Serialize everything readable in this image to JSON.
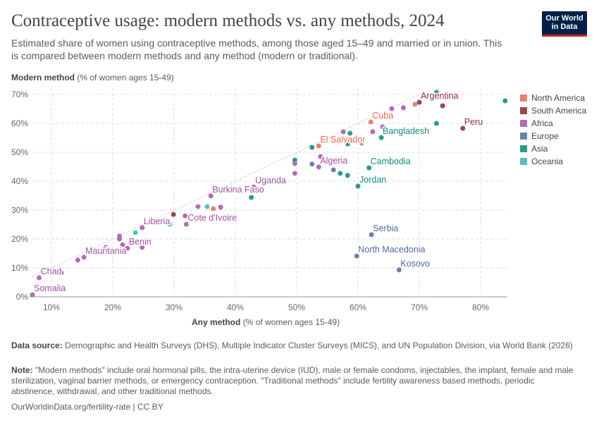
{
  "title": "Contraceptive usage: modern methods vs. any methods, 2024",
  "subtitle": "Estimated share of women using contraceptive methods, among those aged 15–49 and married or in union. This is compared between modern methods and any method (modern or traditional).",
  "logo": {
    "line1": "Our World",
    "line2": "in Data"
  },
  "footer": {
    "source_label": "Data source:",
    "source": "Demographic and Health Surveys (DHS), Multiple Indicator Cluster Surveys (MICS), and UN Population Division, via World Bank (2026)",
    "note_label": "Note:",
    "note": "\"Modern methods\" include oral hormonal pills, the intra-uterine device (IUD), male or female condoms, injectables, the implant, female and male sterilization, vaginal barrier methods, or emergency contraception. \"Traditional methods\" include fertility awareness based methods, periodic abstinence, withdrawal, and other traditional methods.",
    "url": "OurWorldinData.org/fertility-rate | CC BY"
  },
  "chart_data": {
    "type": "scatter",
    "title": "Contraceptive usage: modern methods vs. any methods, 2024",
    "xlabel_bold": "Any method",
    "xlabel_rest": "(% of women ages 15-49)",
    "ylabel_bold": "Modern method",
    "ylabel_rest": "(% of women ages 15-49)",
    "xlim": [
      7,
      84
    ],
    "ylim": [
      0,
      72
    ],
    "xticks": [
      10,
      20,
      30,
      40,
      50,
      60,
      70,
      80
    ],
    "yticks": [
      0,
      10,
      20,
      30,
      40,
      50,
      60,
      70
    ],
    "tick_suffix": "%",
    "grid": true,
    "reference_line": "y = x",
    "legend_position": "right",
    "colors": {
      "North America": "#e4826c",
      "South America": "#9a4552",
      "Africa": "#b06eb4",
      "Europe": "#6d80ad",
      "Asia": "#2a9a8c",
      "Oceania": "#5bbcc8"
    },
    "label_colors": {
      "North America": "#e0674f",
      "South America": "#8a2e3c",
      "Africa": "#a050a8",
      "Europe": "#4f68a0",
      "Asia": "#138a7c",
      "Oceania": "#3aa8b6"
    },
    "legend": [
      "North America",
      "South America",
      "Africa",
      "Europe",
      "Asia",
      "Oceania"
    ],
    "points": [
      {
        "x": 70.0,
        "y": 67.3,
        "region": "South America",
        "label": "Argentina"
      },
      {
        "x": 73.8,
        "y": 66.1,
        "region": "South America"
      },
      {
        "x": 77.1,
        "y": 58.3,
        "region": "South America",
        "label": "Peru"
      },
      {
        "x": 29.9,
        "y": 28.5,
        "region": "South America"
      },
      {
        "x": 62.1,
        "y": 60.5,
        "region": "North America",
        "label": "Cuba"
      },
      {
        "x": 53.6,
        "y": 52.2,
        "region": "North America",
        "label": "El Salvador"
      },
      {
        "x": 69.3,
        "y": 66.6,
        "region": "North America"
      },
      {
        "x": 71.6,
        "y": 69.8,
        "region": "North America"
      },
      {
        "x": 60.6,
        "y": 53.2,
        "region": "North America"
      },
      {
        "x": 36.4,
        "y": 30.5,
        "region": "North America"
      },
      {
        "x": 63.8,
        "y": 55.1,
        "region": "Asia",
        "label": "Bangladesh"
      },
      {
        "x": 61.8,
        "y": 44.6,
        "region": "Asia",
        "label": "Cambodia"
      },
      {
        "x": 60.0,
        "y": 38.3,
        "region": "Asia",
        "label": "Jordan"
      },
      {
        "x": 72.8,
        "y": 70.7,
        "region": "Asia"
      },
      {
        "x": 84.0,
        "y": 67.8,
        "region": "Asia"
      },
      {
        "x": 72.8,
        "y": 60.0,
        "region": "Asia"
      },
      {
        "x": 58.7,
        "y": 56.6,
        "region": "Asia"
      },
      {
        "x": 58.3,
        "y": 52.9,
        "region": "Asia"
      },
      {
        "x": 52.5,
        "y": 51.7,
        "region": "Asia"
      },
      {
        "x": 49.7,
        "y": 47.3,
        "region": "Asia"
      },
      {
        "x": 57.1,
        "y": 42.7,
        "region": "Asia"
      },
      {
        "x": 58.3,
        "y": 42.0,
        "region": "Asia"
      },
      {
        "x": 42.6,
        "y": 34.4,
        "region": "Asia"
      },
      {
        "x": 62.2,
        "y": 21.5,
        "region": "Europe",
        "label": "Serbia"
      },
      {
        "x": 59.8,
        "y": 14.1,
        "region": "Europe",
        "label": "North Macedonia"
      },
      {
        "x": 66.7,
        "y": 9.3,
        "region": "Europe",
        "label": "Kosovo"
      },
      {
        "x": 52.5,
        "y": 45.9,
        "region": "Europe"
      },
      {
        "x": 56.0,
        "y": 43.9,
        "region": "Europe"
      },
      {
        "x": 53.6,
        "y": 44.9,
        "region": "Africa",
        "label": "Algeria"
      },
      {
        "x": 43.0,
        "y": 38.0,
        "region": "Africa",
        "label": "Uganda"
      },
      {
        "x": 36.0,
        "y": 34.9,
        "region": "Africa",
        "label": "Burkina Faso"
      },
      {
        "x": 32.0,
        "y": 25.1,
        "region": "Africa",
        "label": "Cote d'Ivoire"
      },
      {
        "x": 24.8,
        "y": 23.9,
        "region": "Africa",
        "label": "Liberia"
      },
      {
        "x": 22.4,
        "y": 16.8,
        "region": "Africa",
        "label": "Benin"
      },
      {
        "x": 15.3,
        "y": 13.7,
        "region": "Africa",
        "label": "Mauritania"
      },
      {
        "x": 8.0,
        "y": 6.6,
        "region": "Africa",
        "label": "Chad"
      },
      {
        "x": 6.9,
        "y": 0.7,
        "region": "Africa",
        "label": "Somalia"
      },
      {
        "x": 65.5,
        "y": 65.1,
        "region": "Africa"
      },
      {
        "x": 67.4,
        "y": 65.4,
        "region": "Africa"
      },
      {
        "x": 57.6,
        "y": 57.1,
        "region": "Africa"
      },
      {
        "x": 62.4,
        "y": 57.1,
        "region": "Africa"
      },
      {
        "x": 64.0,
        "y": 58.8,
        "region": "Africa"
      },
      {
        "x": 53.9,
        "y": 48.5,
        "region": "Africa"
      },
      {
        "x": 49.7,
        "y": 46.1,
        "region": "Africa"
      },
      {
        "x": 49.7,
        "y": 42.7,
        "region": "Africa"
      },
      {
        "x": 33.9,
        "y": 31.2,
        "region": "Africa"
      },
      {
        "x": 37.6,
        "y": 31.0,
        "region": "Africa"
      },
      {
        "x": 31.8,
        "y": 28.0,
        "region": "Africa"
      },
      {
        "x": 21.1,
        "y": 21.0,
        "region": "Africa"
      },
      {
        "x": 21.1,
        "y": 20.0,
        "region": "Africa"
      },
      {
        "x": 21.6,
        "y": 18.0,
        "region": "Africa"
      },
      {
        "x": 24.8,
        "y": 17.1,
        "region": "Africa"
      },
      {
        "x": 18.9,
        "y": 17.1,
        "region": "Africa"
      },
      {
        "x": 14.3,
        "y": 12.7,
        "region": "Africa"
      },
      {
        "x": 11.6,
        "y": 8.3,
        "region": "Africa"
      },
      {
        "x": 16.6,
        "y": 15.9,
        "region": "Oceania"
      },
      {
        "x": 23.7,
        "y": 22.2,
        "region": "Oceania"
      },
      {
        "x": 29.3,
        "y": 25.1,
        "region": "Oceania"
      },
      {
        "x": 35.4,
        "y": 31.2,
        "region": "Oceania"
      }
    ]
  }
}
